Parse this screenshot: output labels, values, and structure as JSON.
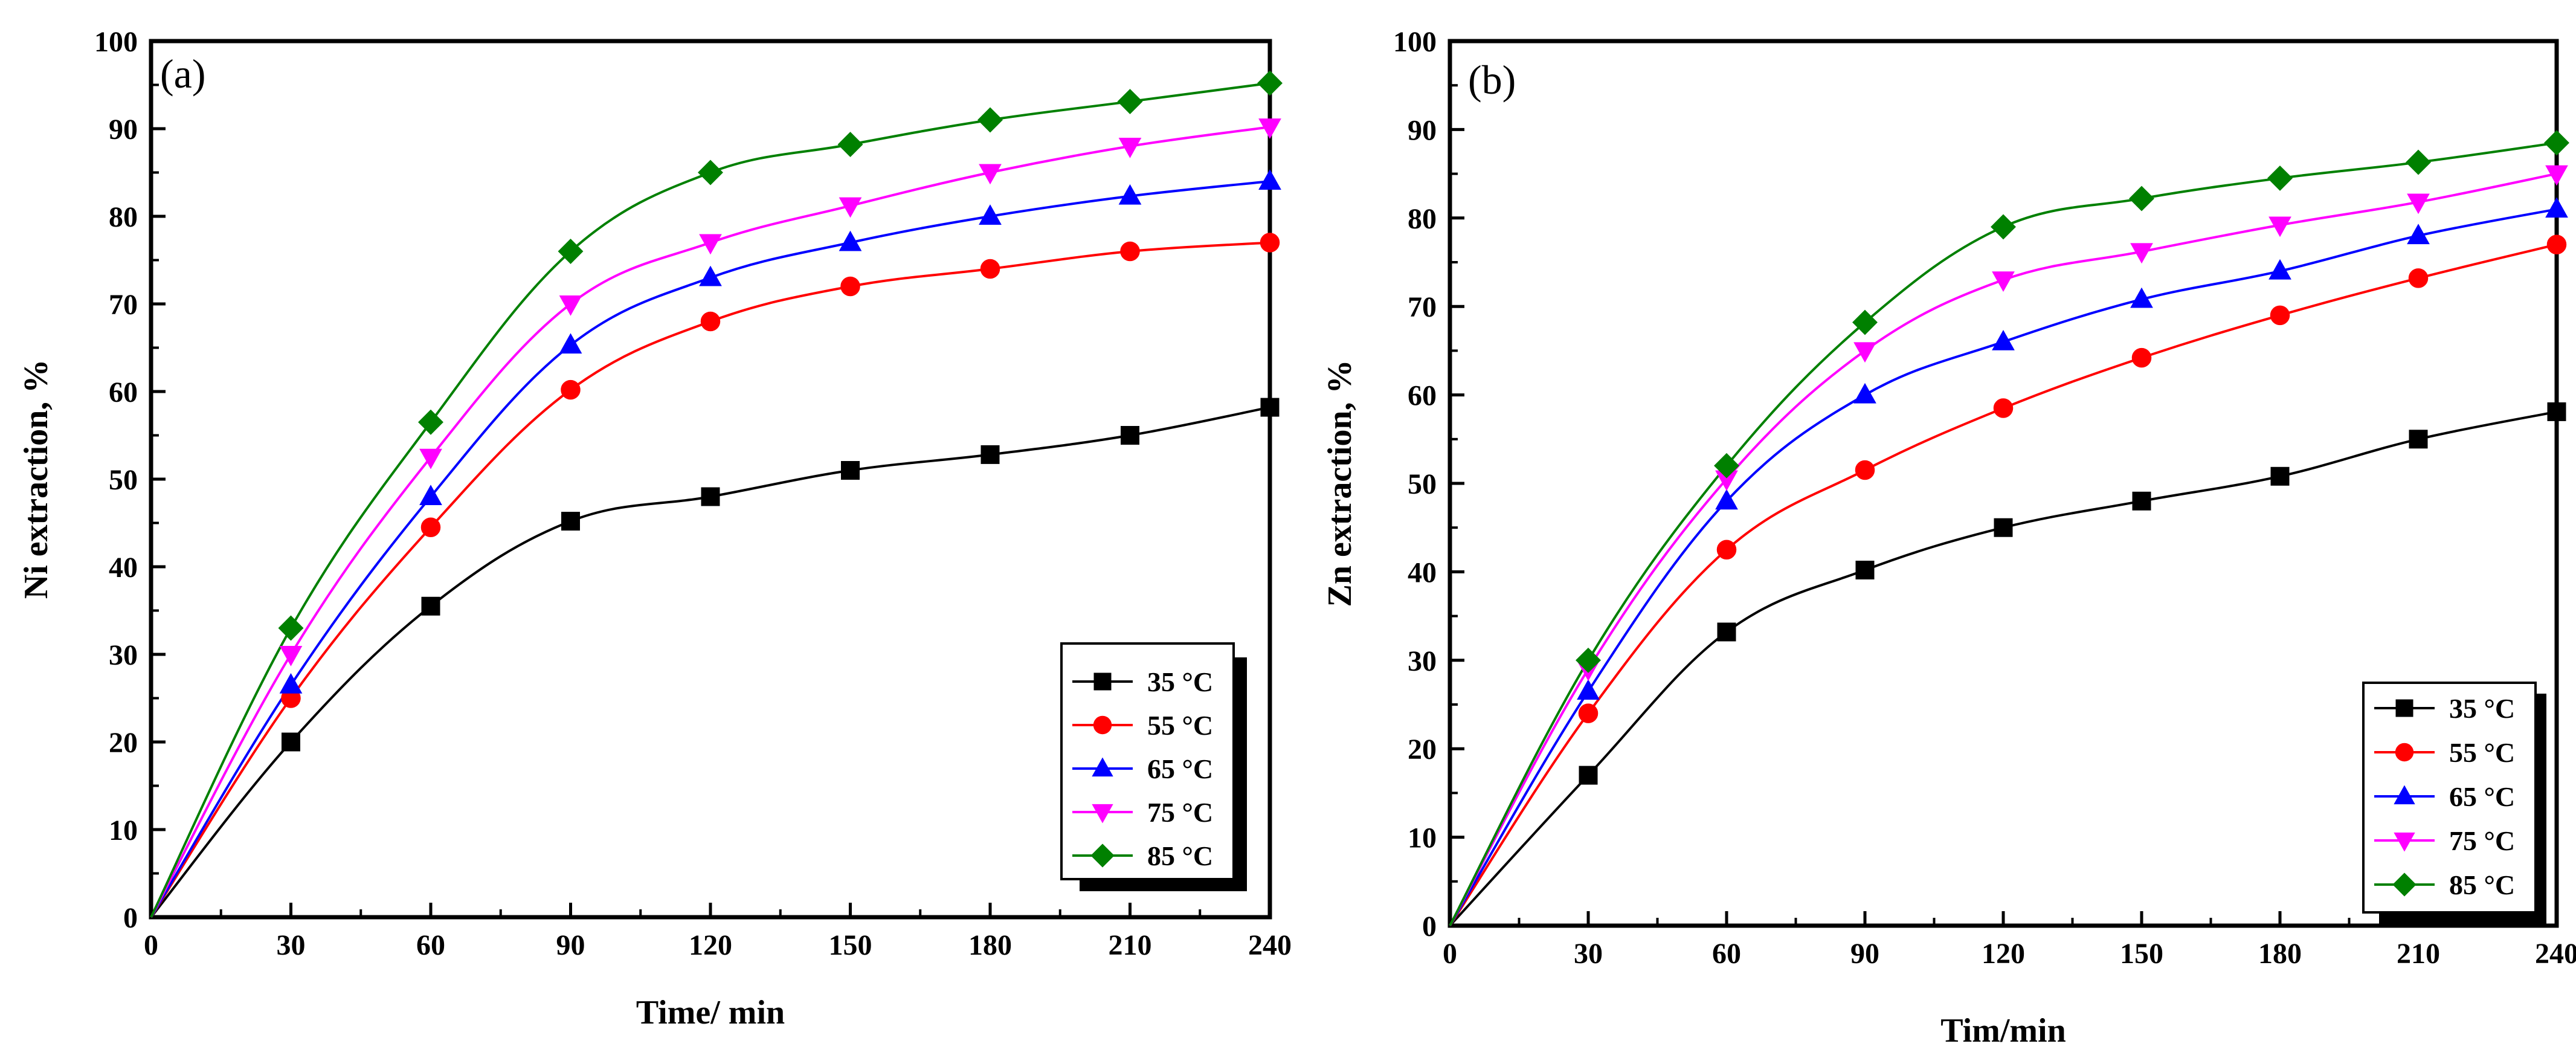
{
  "chart_data": [
    {
      "type": "line",
      "panel_label": "(a)",
      "xlabel": "Time/ min",
      "ylabel": "Ni extraction, %",
      "xlim": [
        0,
        240
      ],
      "ylim": [
        0,
        100
      ],
      "xticks": [
        0,
        30,
        60,
        90,
        120,
        150,
        180,
        210,
        240
      ],
      "yticks": [
        0,
        10,
        20,
        30,
        40,
        50,
        60,
        70,
        80,
        90,
        100
      ],
      "legend_position": "bottom-right",
      "x": [
        0,
        30,
        60,
        90,
        120,
        150,
        180,
        210,
        240
      ],
      "series": [
        {
          "name": "35 °C",
          "color": "#000000",
          "marker": "square",
          "values": [
            0,
            20,
            35.5,
            45.2,
            48,
            51,
            52.8,
            55,
            58.2
          ]
        },
        {
          "name": "55 °C",
          "color": "#ff0000",
          "marker": "circle",
          "values": [
            0,
            25,
            44.5,
            60.2,
            68,
            72,
            74,
            76,
            77
          ]
        },
        {
          "name": "65 °C",
          "color": "#0000ff",
          "marker": "triangle-up",
          "values": [
            0,
            26.5,
            48,
            65.3,
            73,
            77,
            80,
            82.3,
            84
          ]
        },
        {
          "name": "75 °C",
          "color": "#ff00ff",
          "marker": "triangle-down",
          "values": [
            0,
            30,
            52.5,
            70,
            77,
            81.2,
            85,
            88,
            90.2
          ]
        },
        {
          "name": "85 °C",
          "color": "#008000",
          "marker": "diamond",
          "values": [
            0,
            33,
            56.5,
            76,
            85,
            88.2,
            91,
            93.1,
            95.2
          ]
        }
      ]
    },
    {
      "type": "line",
      "panel_label": "(b)",
      "xlabel": "Tim/min",
      "ylabel": "Zn extraction, %",
      "xlim": [
        0,
        240
      ],
      "ylim": [
        0,
        100
      ],
      "xticks": [
        0,
        30,
        60,
        90,
        120,
        150,
        180,
        210,
        240
      ],
      "yticks": [
        0,
        10,
        20,
        30,
        40,
        50,
        60,
        70,
        80,
        90,
        100
      ],
      "legend_position": "bottom-right",
      "x": [
        0,
        30,
        60,
        90,
        120,
        150,
        180,
        210,
        240
      ],
      "series": [
        {
          "name": "35 °C",
          "color": "#000000",
          "marker": "square",
          "values": [
            0,
            17,
            33.2,
            40.2,
            45,
            48,
            50.8,
            55,
            58.1
          ]
        },
        {
          "name": "55 °C",
          "color": "#ff0000",
          "marker": "circle",
          "values": [
            0,
            24,
            42.5,
            51.5,
            58.5,
            64.2,
            69,
            73.2,
            77
          ]
        },
        {
          "name": "65 °C",
          "color": "#0000ff",
          "marker": "triangle-up",
          "values": [
            0,
            26.5,
            48,
            60,
            66,
            70.8,
            74,
            78,
            81
          ]
        },
        {
          "name": "75 °C",
          "color": "#ff00ff",
          "marker": "triangle-down",
          "values": [
            0,
            29,
            50.5,
            65,
            73,
            76.2,
            79.2,
            81.8,
            85
          ]
        },
        {
          "name": "85 °C",
          "color": "#008000",
          "marker": "diamond",
          "values": [
            0,
            30,
            52,
            68.2,
            79,
            82.2,
            84.5,
            86.3,
            88.5
          ]
        }
      ]
    }
  ]
}
